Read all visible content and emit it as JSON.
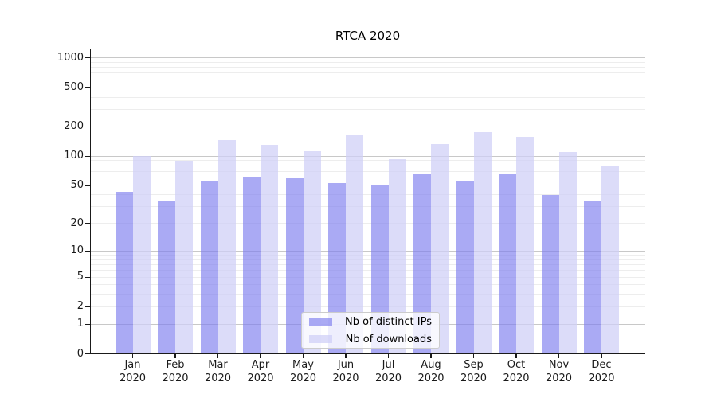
{
  "chart_data": {
    "type": "bar",
    "title": "RTCA 2020",
    "categories": [
      "Jan",
      "Feb",
      "Mar",
      "Apr",
      "May",
      "Jun",
      "Jul",
      "Aug",
      "Sep",
      "Oct",
      "Nov",
      "Dec"
    ],
    "year_label": "2020",
    "series": [
      {
        "name": "Nb of distinct IPs",
        "color": "rgba(125,125,238,0.65)",
        "solid_color": "#aaaaf3",
        "values": [
          43,
          35,
          55,
          62,
          60,
          53,
          50,
          66,
          56,
          65,
          40,
          34
        ]
      },
      {
        "name": "Nb of downloads",
        "color": "rgba(206,206,247,0.72)",
        "solid_color": "#dbdbf9",
        "values": [
          100,
          90,
          145,
          130,
          113,
          165,
          94,
          133,
          175,
          156,
          110,
          80
        ]
      }
    ],
    "y_ticks": [
      0,
      1,
      2,
      5,
      10,
      20,
      50,
      100,
      200,
      500,
      1000
    ],
    "y_scale": "symlog",
    "ylim": [
      0,
      1200
    ],
    "grid": "on",
    "grid_major_color": "#c8c8c8",
    "grid_minor_color": "#ededed",
    "legend_position": "lower center"
  }
}
